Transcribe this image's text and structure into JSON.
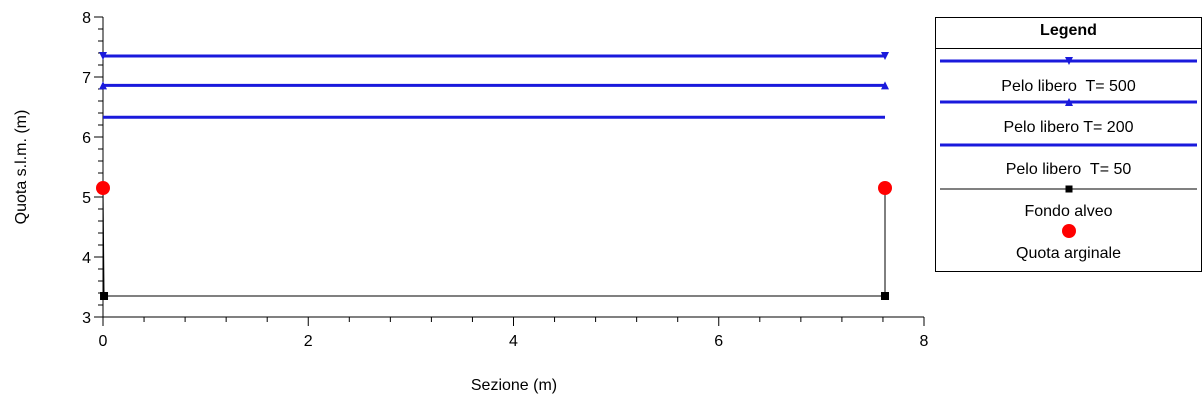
{
  "chart_data": {
    "type": "line",
    "xlabel": "Sezione (m)",
    "ylabel": "Quota s.l.m. (m)",
    "xlim": [
      0,
      8
    ],
    "ylim": [
      3,
      8
    ],
    "x_ticks": [
      "0",
      "2",
      "4",
      "6",
      "8"
    ],
    "y_ticks": [
      "3",
      "4",
      "5",
      "6",
      "7",
      "8"
    ],
    "grid": false,
    "legend_placement": "right",
    "series": [
      {
        "name": "Pelo libero  T= 500",
        "color": "#1a1adc",
        "marker": "triangle-down",
        "x": [
          0,
          7.62
        ],
        "y": [
          7.35,
          7.35
        ]
      },
      {
        "name": "Pelo libero T= 200",
        "color": "#1a1adc",
        "marker": "triangle-up",
        "x": [
          0,
          7.62
        ],
        "y": [
          6.86,
          6.86
        ]
      },
      {
        "name": "Pelo libero  T= 50",
        "color": "#1a1adc",
        "marker": "none",
        "x": [
          0,
          7.62
        ],
        "y": [
          6.33,
          6.33
        ]
      },
      {
        "name": "Fondo alveo",
        "color": "#000000",
        "marker": "square",
        "x": [
          0,
          0.01,
          7.62,
          7.62
        ],
        "y": [
          5.15,
          3.35,
          3.35,
          5.15
        ]
      },
      {
        "name": "Quota arginale",
        "color": "#ff0000",
        "marker": "circle",
        "x": [
          0,
          7.62
        ],
        "y": [
          5.15,
          5.15
        ]
      }
    ]
  },
  "legend": {
    "title": "Legend"
  }
}
